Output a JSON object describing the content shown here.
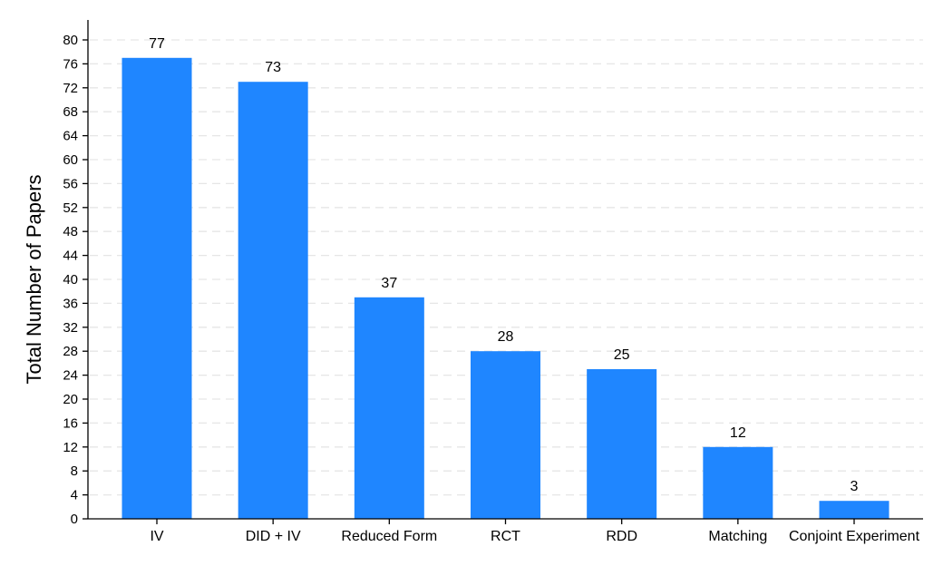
{
  "chart_data": {
    "type": "bar",
    "categories": [
      "IV",
      "DID + IV",
      "Reduced Form",
      "RCT",
      "RDD",
      "Matching",
      "Conjoint Experiment"
    ],
    "values": [
      77,
      73,
      37,
      28,
      25,
      12,
      3
    ],
    "data_labels": [
      "77",
      "73",
      "37",
      "28",
      "25",
      "12",
      "3"
    ],
    "ylabel": "Total Number of Papers",
    "xlabel": "",
    "ylim": [
      0,
      80
    ],
    "yticks": [
      0,
      4,
      8,
      12,
      16,
      20,
      24,
      28,
      32,
      36,
      40,
      44,
      48,
      52,
      56,
      60,
      64,
      68,
      72,
      76,
      80
    ],
    "grid": true,
    "grid_style": "dashed horizontal",
    "bar_color": "#1f86ff",
    "legend": "none"
  }
}
